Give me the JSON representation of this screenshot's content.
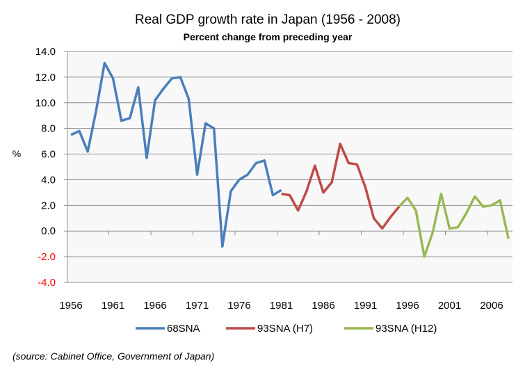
{
  "chart_data": {
    "type": "line",
    "title": "Real GDP growth rate in Japan (1956 - 2008)",
    "subtitle": "Percent change from preceding year",
    "xlabel": "",
    "ylabel": "%",
    "ylim": [
      -4,
      14
    ],
    "yticks": [
      "14.0",
      "12.0",
      "10.0",
      "8.0",
      "6.0",
      "4.0",
      "2.0",
      "0.0",
      "-2.0",
      "-4.0"
    ],
    "ytick_values": [
      14,
      12,
      10,
      8,
      6,
      4,
      2,
      0,
      -2,
      -4
    ],
    "negative_tick_color": "#ff0000",
    "xticks": [
      "1956",
      "1961",
      "1966",
      "1971",
      "1976",
      "1981",
      "1986",
      "1991",
      "1996",
      "2001",
      "2006"
    ],
    "grid": true,
    "legend": "bottom",
    "series": [
      {
        "name": "68SNA",
        "color": "#4a7ebb",
        "x": [
          1956,
          1957,
          1958,
          1959,
          1960,
          1961,
          1962,
          1963,
          1964,
          1965,
          1966,
          1967,
          1968,
          1969,
          1970,
          1971,
          1972,
          1973,
          1974,
          1975,
          1976,
          1977,
          1978,
          1979,
          1980,
          1981
        ],
        "values": [
          7.5,
          7.8,
          6.2,
          9.4,
          13.1,
          11.9,
          8.6,
          8.8,
          11.2,
          5.7,
          10.2,
          11.1,
          11.9,
          12.0,
          10.3,
          4.4,
          8.4,
          8.0,
          -1.2,
          3.1,
          4.0,
          4.4,
          5.3,
          5.5,
          2.8,
          3.2
        ]
      },
      {
        "name": "93SNA (H7)",
        "color": "#be4b48",
        "x": [
          1981,
          1982,
          1983,
          1984,
          1985,
          1986,
          1987,
          1988,
          1989,
          1990,
          1991,
          1992,
          1993,
          1994,
          1995
        ],
        "values": [
          2.9,
          2.8,
          1.6,
          3.1,
          5.1,
          3.0,
          3.8,
          6.8,
          5.3,
          5.2,
          3.4,
          1.0,
          0.2,
          1.1,
          1.9
        ]
      },
      {
        "name": "93SNA (H12)",
        "color": "#98b954",
        "x": [
          1995,
          1996,
          1997,
          1998,
          1999,
          2000,
          2001,
          2002,
          2003,
          2004,
          2005,
          2006,
          2007,
          2008
        ],
        "values": [
          1.9,
          2.6,
          1.6,
          -2.0,
          -0.1,
          2.9,
          0.2,
          0.3,
          1.4,
          2.7,
          1.9,
          2.0,
          2.4,
          -0.6
        ]
      }
    ],
    "source_note": "(source:  Cabinet Office, Government of Japan)"
  }
}
